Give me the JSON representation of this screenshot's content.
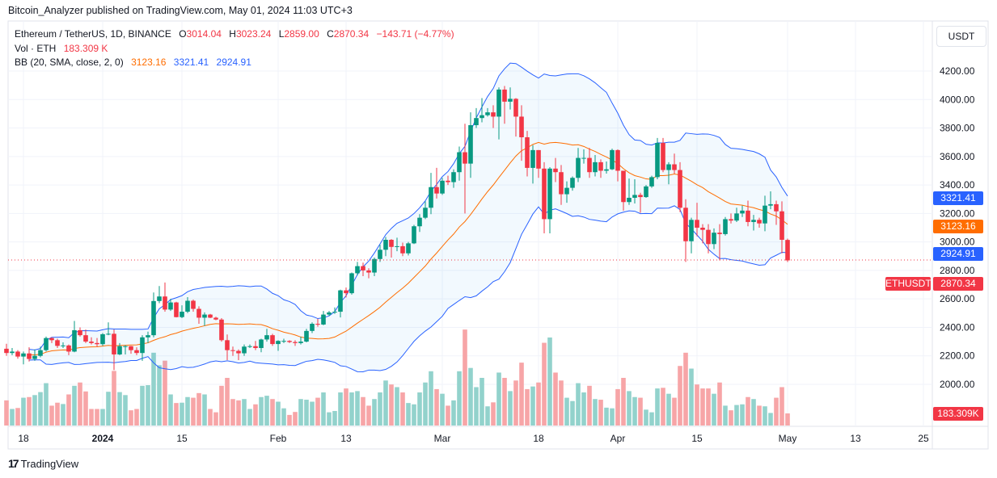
{
  "publisher_line": "Bitcoin_Analyzer published on TradingView.com, May 01, 2024 11:03 UTC+3",
  "legend": {
    "symbol": "Ethereum / TetherUS, 1D, BINANCE",
    "o_label": "O",
    "o": "3014.04",
    "h_label": "H",
    "h": "3023.24",
    "l_label": "L",
    "l": "2859.00",
    "c_label": "C",
    "c": "2870.34",
    "change": "−143.71 (−4.77%)",
    "vol_label": "Vol · ETH",
    "vol": "183.309 K",
    "bb_label": "BB (20, SMA, close, 2, 0)",
    "bb_basis": "3123.16",
    "bb_upper": "3321.41",
    "bb_lower": "2924.91"
  },
  "currency_button": "USDT",
  "price_tags": {
    "upper": "3321.41",
    "basis": "3123.16",
    "lower": "2924.91",
    "last": "2870.34",
    "symbol": "ETHUSDT",
    "volume": "183.309K"
  },
  "footer": {
    "logo": "TradingView"
  },
  "colors": {
    "up": "#089981",
    "down": "#f23645",
    "bb_band": "#2962ff",
    "bb_basis": "#ff6d00",
    "vol_up": "#92d2cc",
    "vol_down": "#f7a5a7"
  },
  "chart_data": {
    "type": "candlestick",
    "title": "Ethereum / TetherUS, 1D, BINANCE",
    "ylim": [
      1800,
      4300
    ],
    "y_ticks": [
      "4200.00",
      "4000.00",
      "3800.00",
      "3600.00",
      "3400.00",
      "3200.00",
      "3000.00",
      "2800.00",
      "2600.00",
      "2400.00",
      "2200.00",
      "2000.00"
    ],
    "x_ticks": [
      {
        "date": "2023-12-18",
        "label": "18"
      },
      {
        "date": "2024-01-01",
        "label": "2024"
      },
      {
        "date": "2024-01-15",
        "label": "15"
      },
      {
        "date": "2024-02-01",
        "label": "Feb"
      },
      {
        "date": "2024-02-13",
        "label": "13"
      },
      {
        "date": "2024-03-01",
        "label": "Mar"
      },
      {
        "date": "2024-03-18",
        "label": "18"
      },
      {
        "date": "2024-04-01",
        "label": "Apr"
      },
      {
        "date": "2024-04-15",
        "label": "15"
      },
      {
        "date": "2024-05-01",
        "label": "May"
      },
      {
        "date": "2024-05-13",
        "label": "13"
      },
      {
        "date": "2024-05-25",
        "label": "25"
      }
    ],
    "grid": true,
    "indicators": [
      "Volume (ETH, thousands)",
      "BB (20, SMA, close, 2, 0)"
    ],
    "columns": [
      "date",
      "open",
      "high",
      "low",
      "close",
      "volume_k"
    ],
    "candles": [
      [
        "2023-12-15",
        2250,
        2285,
        2200,
        2220,
        380
      ],
      [
        "2023-12-16",
        2220,
        2255,
        2205,
        2230,
        250
      ],
      [
        "2023-12-17",
        2230,
        2240,
        2180,
        2195,
        265
      ],
      [
        "2023-12-18",
        2195,
        2230,
        2140,
        2217,
        420
      ],
      [
        "2023-12-19",
        2217,
        2260,
        2160,
        2178,
        430
      ],
      [
        "2023-12-20",
        2178,
        2245,
        2165,
        2200,
        460
      ],
      [
        "2023-12-21",
        2200,
        2265,
        2190,
        2240,
        505
      ],
      [
        "2023-12-22",
        2240,
        2335,
        2230,
        2325,
        640
      ],
      [
        "2023-12-23",
        2325,
        2330,
        2290,
        2310,
        300
      ],
      [
        "2023-12-24",
        2310,
        2320,
        2255,
        2270,
        345
      ],
      [
        "2023-12-25",
        2270,
        2295,
        2255,
        2273,
        325
      ],
      [
        "2023-12-26",
        2273,
        2280,
        2205,
        2230,
        470
      ],
      [
        "2023-12-27",
        2230,
        2445,
        2225,
        2380,
        600
      ],
      [
        "2023-12-28",
        2380,
        2400,
        2335,
        2345,
        650
      ],
      [
        "2023-12-29",
        2345,
        2385,
        2290,
        2300,
        515
      ],
      [
        "2023-12-30",
        2300,
        2330,
        2280,
        2290,
        250
      ],
      [
        "2023-12-31",
        2290,
        2325,
        2265,
        2282,
        250
      ],
      [
        "2024-01-01",
        2282,
        2360,
        2270,
        2352,
        250
      ],
      [
        "2024-01-02",
        2352,
        2435,
        2345,
        2355,
        510
      ],
      [
        "2024-01-03",
        2355,
        2385,
        2100,
        2210,
        825
      ],
      [
        "2024-01-04",
        2210,
        2290,
        2205,
        2268,
        505
      ],
      [
        "2024-01-05",
        2268,
        2275,
        2210,
        2268,
        460
      ],
      [
        "2024-01-06",
        2268,
        2270,
        2215,
        2240,
        230
      ],
      [
        "2024-01-07",
        2240,
        2260,
        2205,
        2220,
        250
      ],
      [
        "2024-01-08",
        2220,
        2345,
        2165,
        2330,
        600
      ],
      [
        "2024-01-09",
        2330,
        2370,
        2290,
        2345,
        610
      ],
      [
        "2024-01-10",
        2345,
        2645,
        2330,
        2585,
        1100
      ],
      [
        "2024-01-11",
        2585,
        2690,
        2570,
        2617,
        910
      ],
      [
        "2024-01-12",
        2617,
        2715,
        2510,
        2525,
        980
      ],
      [
        "2024-01-13",
        2525,
        2600,
        2515,
        2575,
        470
      ],
      [
        "2024-01-14",
        2575,
        2580,
        2470,
        2472,
        340
      ],
      [
        "2024-01-15",
        2472,
        2555,
        2465,
        2510,
        345
      ],
      [
        "2024-01-16",
        2510,
        2612,
        2500,
        2587,
        430
      ],
      [
        "2024-01-17",
        2587,
        2595,
        2510,
        2530,
        420
      ],
      [
        "2024-01-18",
        2530,
        2548,
        2425,
        2468,
        490
      ],
      [
        "2024-01-19",
        2468,
        2505,
        2410,
        2490,
        470
      ],
      [
        "2024-01-20",
        2490,
        2495,
        2465,
        2468,
        250
      ],
      [
        "2024-01-21",
        2468,
        2475,
        2450,
        2455,
        200
      ],
      [
        "2024-01-22",
        2455,
        2465,
        2300,
        2310,
        600
      ],
      [
        "2024-01-23",
        2310,
        2350,
        2170,
        2240,
        720
      ],
      [
        "2024-01-24",
        2240,
        2265,
        2200,
        2235,
        400
      ],
      [
        "2024-01-25",
        2235,
        2245,
        2170,
        2218,
        380
      ],
      [
        "2024-01-26",
        2218,
        2280,
        2200,
        2265,
        400
      ],
      [
        "2024-01-27",
        2265,
        2280,
        2255,
        2268,
        250
      ],
      [
        "2024-01-28",
        2268,
        2305,
        2240,
        2255,
        320
      ],
      [
        "2024-01-29",
        2255,
        2320,
        2225,
        2315,
        430
      ],
      [
        "2024-01-30",
        2315,
        2390,
        2300,
        2345,
        450
      ],
      [
        "2024-01-31",
        2345,
        2355,
        2270,
        2283,
        400
      ],
      [
        "2024-02-01",
        2283,
        2310,
        2235,
        2305,
        360
      ],
      [
        "2024-02-02",
        2305,
        2320,
        2290,
        2305,
        260
      ],
      [
        "2024-02-03",
        2305,
        2310,
        2290,
        2297,
        160
      ],
      [
        "2024-02-04",
        2297,
        2310,
        2270,
        2290,
        205
      ],
      [
        "2024-02-05",
        2290,
        2335,
        2280,
        2300,
        400
      ],
      [
        "2024-02-06",
        2300,
        2390,
        2295,
        2375,
        390
      ],
      [
        "2024-02-07",
        2375,
        2435,
        2360,
        2425,
        360
      ],
      [
        "2024-02-08",
        2425,
        2460,
        2405,
        2420,
        420
      ],
      [
        "2024-02-09",
        2420,
        2515,
        2415,
        2490,
        500
      ],
      [
        "2024-02-10",
        2490,
        2515,
        2480,
        2505,
        200
      ],
      [
        "2024-02-11",
        2505,
        2540,
        2495,
        2510,
        220
      ],
      [
        "2024-02-12",
        2510,
        2665,
        2470,
        2660,
        500
      ],
      [
        "2024-02-13",
        2660,
        2680,
        2610,
        2640,
        560
      ],
      [
        "2024-02-14",
        2640,
        2785,
        2630,
        2780,
        500
      ],
      [
        "2024-02-15",
        2780,
        2860,
        2765,
        2830,
        520
      ],
      [
        "2024-02-16",
        2830,
        2855,
        2760,
        2800,
        430
      ],
      [
        "2024-02-17",
        2800,
        2815,
        2745,
        2785,
        300
      ],
      [
        "2024-02-18",
        2785,
        2890,
        2760,
        2880,
        400
      ],
      [
        "2024-02-19",
        2880,
        2980,
        2860,
        2945,
        500
      ],
      [
        "2024-02-20",
        2945,
        3035,
        2900,
        3015,
        680
      ],
      [
        "2024-02-21",
        3015,
        3020,
        2890,
        2965,
        620
      ],
      [
        "2024-02-22",
        2965,
        3030,
        2935,
        2970,
        580
      ],
      [
        "2024-02-23",
        2970,
        2995,
        2900,
        2920,
        500
      ],
      [
        "2024-02-24",
        2920,
        3000,
        2905,
        2990,
        340
      ],
      [
        "2024-02-25",
        2990,
        3120,
        2985,
        3110,
        320
      ],
      [
        "2024-02-26",
        3110,
        3195,
        3070,
        3170,
        500
      ],
      [
        "2024-02-27",
        3170,
        3285,
        3160,
        3240,
        650
      ],
      [
        "2024-02-28",
        3240,
        3485,
        3195,
        3385,
        820
      ],
      [
        "2024-02-29",
        3385,
        3520,
        3305,
        3340,
        550
      ],
      [
        "2024-03-01",
        3340,
        3450,
        3330,
        3430,
        480
      ],
      [
        "2024-03-02",
        3430,
        3465,
        3400,
        3420,
        300
      ],
      [
        "2024-03-03",
        3420,
        3510,
        3380,
        3490,
        380
      ],
      [
        "2024-03-04",
        3490,
        3670,
        3430,
        3630,
        820
      ],
      [
        "2024-03-05",
        3630,
        3830,
        3200,
        3550,
        1450
      ],
      [
        "2024-03-06",
        3550,
        3910,
        3450,
        3820,
        870
      ],
      [
        "2024-03-07",
        3820,
        3940,
        3800,
        3870,
        580
      ],
      [
        "2024-03-08",
        3870,
        4010,
        3840,
        3890,
        720
      ],
      [
        "2024-03-09",
        3890,
        3940,
        3880,
        3910,
        290
      ],
      [
        "2024-03-10",
        3910,
        3960,
        3800,
        3880,
        350
      ],
      [
        "2024-03-11",
        3880,
        4085,
        3720,
        4070,
        800
      ],
      [
        "2024-03-12",
        4070,
        4095,
        3830,
        3985,
        720
      ],
      [
        "2024-03-13",
        3985,
        4085,
        3930,
        4005,
        520
      ],
      [
        "2024-03-14",
        4005,
        4010,
        3740,
        3880,
        680
      ],
      [
        "2024-03-15",
        3880,
        3960,
        3570,
        3735,
        950
      ],
      [
        "2024-03-16",
        3735,
        3780,
        3460,
        3520,
        550
      ],
      [
        "2024-03-17",
        3520,
        3680,
        3410,
        3645,
        590
      ],
      [
        "2024-03-18",
        3645,
        3645,
        3450,
        3515,
        650
      ],
      [
        "2024-03-19",
        3515,
        3560,
        3060,
        3160,
        1250
      ],
      [
        "2024-03-20",
        3160,
        3525,
        3060,
        3515,
        1330
      ],
      [
        "2024-03-21",
        3515,
        3590,
        3420,
        3490,
        800
      ],
      [
        "2024-03-22",
        3490,
        3540,
        3260,
        3335,
        680
      ],
      [
        "2024-03-23",
        3335,
        3425,
        3275,
        3380,
        420
      ],
      [
        "2024-03-24",
        3380,
        3460,
        3360,
        3450,
        370
      ],
      [
        "2024-03-25",
        3450,
        3660,
        3420,
        3590,
        640
      ],
      [
        "2024-03-26",
        3590,
        3650,
        3550,
        3590,
        500
      ],
      [
        "2024-03-27",
        3590,
        3660,
        3450,
        3490,
        600
      ],
      [
        "2024-03-28",
        3490,
        3610,
        3460,
        3560,
        400
      ],
      [
        "2024-03-29",
        3560,
        3580,
        3450,
        3500,
        390
      ],
      [
        "2024-03-30",
        3500,
        3565,
        3480,
        3510,
        270
      ],
      [
        "2024-03-31",
        3510,
        3655,
        3505,
        3645,
        260
      ],
      [
        "2024-04-01",
        3645,
        3650,
        3425,
        3500,
        550
      ],
      [
        "2024-04-02",
        3500,
        3500,
        3220,
        3280,
        720
      ],
      [
        "2024-04-03",
        3280,
        3445,
        3260,
        3310,
        520
      ],
      [
        "2024-04-04",
        3310,
        3440,
        3270,
        3330,
        430
      ],
      [
        "2024-04-05",
        3330,
        3345,
        3205,
        3315,
        420
      ],
      [
        "2024-04-06",
        3315,
        3400,
        3310,
        3390,
        240
      ],
      [
        "2024-04-07",
        3390,
        3465,
        3380,
        3455,
        200
      ],
      [
        "2024-04-08",
        3455,
        3730,
        3440,
        3695,
        560
      ],
      [
        "2024-04-09",
        3695,
        3730,
        3490,
        3505,
        570
      ],
      [
        "2024-04-10",
        3505,
        3560,
        3405,
        3545,
        480
      ],
      [
        "2024-04-11",
        3545,
        3620,
        3480,
        3505,
        420
      ],
      [
        "2024-04-12",
        3505,
        3560,
        3210,
        3240,
        900
      ],
      [
        "2024-04-13",
        3240,
        3300,
        2860,
        3005,
        1100
      ],
      [
        "2024-04-14",
        3005,
        3170,
        2920,
        3155,
        860
      ],
      [
        "2024-04-15",
        3155,
        3275,
        3040,
        3100,
        620
      ],
      [
        "2024-04-16",
        3100,
        3125,
        2990,
        3085,
        560
      ],
      [
        "2024-04-17",
        3085,
        3125,
        2920,
        2985,
        560
      ],
      [
        "2024-04-18",
        2985,
        3095,
        2950,
        3065,
        480
      ],
      [
        "2024-04-19",
        3065,
        3125,
        2870,
        3055,
        650
      ],
      [
        "2024-04-20",
        3055,
        3175,
        3045,
        3160,
        300
      ],
      [
        "2024-04-21",
        3160,
        3200,
        3130,
        3150,
        230
      ],
      [
        "2024-04-22",
        3150,
        3240,
        3140,
        3200,
        310
      ],
      [
        "2024-04-23",
        3200,
        3255,
        3175,
        3220,
        320
      ],
      [
        "2024-04-24",
        3220,
        3290,
        3110,
        3140,
        430
      ],
      [
        "2024-04-25",
        3140,
        3190,
        3080,
        3155,
        400
      ],
      [
        "2024-04-26",
        3155,
        3170,
        3100,
        3130,
        300
      ],
      [
        "2024-04-27",
        3130,
        3325,
        3075,
        3255,
        290
      ],
      [
        "2024-04-28",
        3255,
        3355,
        3230,
        3265,
        190
      ],
      [
        "2024-04-29",
        3265,
        3290,
        3120,
        3215,
        420
      ],
      [
        "2024-04-30",
        3215,
        3285,
        2920,
        3015,
        580
      ],
      [
        "2024-05-01",
        3014.04,
        3023.24,
        2859.0,
        2870.34,
        183.309
      ]
    ]
  }
}
